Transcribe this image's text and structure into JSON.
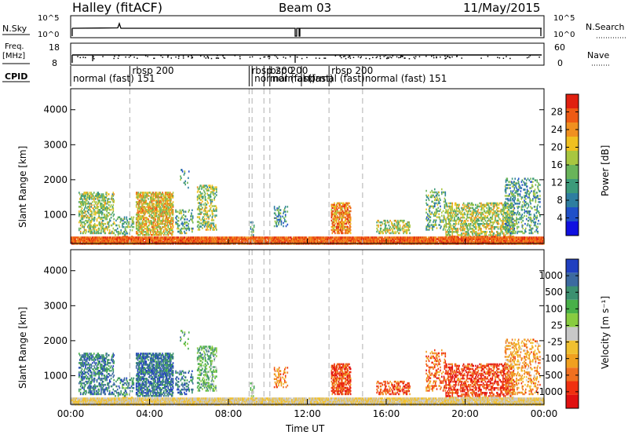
{
  "header": {
    "station": "Halley (fitACF)",
    "beam": "Beam 03",
    "date": "11/May/2015"
  },
  "chart_data": [
    {
      "type": "line",
      "name": "noise-panel",
      "left_label": "N.Sky",
      "right_label": "N.Search",
      "left_ticks": [
        "10^5",
        "10^0"
      ],
      "right_ticks": [
        "10^5",
        "10^0"
      ]
    },
    {
      "type": "line",
      "name": "frequency-panel",
      "left_label": "Freq.",
      "left_unit": "[MHz]",
      "right_label": "Nave",
      "left_ticks": [
        18,
        8
      ],
      "right_ticks": [
        60,
        0
      ]
    },
    {
      "type": "table",
      "name": "cpid-panel",
      "left_label": "CPID",
      "modes": [
        {
          "label": "normal (fast)",
          "id": "151",
          "start": 0.0
        },
        {
          "label": "rbsp",
          "id": "200",
          "start": 3.0
        },
        {
          "label": "rbsp",
          "id": "200",
          "start": 9.05
        },
        {
          "label": "normal (fast)",
          "id": "",
          "start": 9.2
        },
        {
          "label": "rbsp",
          "id": "200",
          "start": 9.8
        },
        {
          "label": "normal (fast)",
          "id": "",
          "start": 10.1
        },
        {
          "label": "normal (fast)",
          "id": "",
          "start": 11.7
        },
        {
          "label": "rbsp",
          "id": "200",
          "start": 13.1
        },
        {
          "label": "normal (fast)",
          "id": "151",
          "start": 14.8
        }
      ]
    },
    {
      "type": "heatmap",
      "name": "power-panel",
      "ylabel": "Slant Range [km]",
      "yticks": [
        1000,
        2000,
        3000,
        4000
      ],
      "ylim": [
        180,
        4600
      ],
      "xlim": [
        0,
        24
      ],
      "colorbar": {
        "label": "Power [dB]",
        "ticks": [
          "28",
          "24",
          "20",
          "16",
          "12",
          "8",
          "4"
        ],
        "colors": [
          "#1010e0",
          "#2050c8",
          "#2e7ea0",
          "#3c9a7a",
          "#69b45a",
          "#a8c640",
          "#f0c020",
          "#f09020",
          "#ee5a14",
          "#e02010"
        ]
      }
    },
    {
      "type": "heatmap",
      "name": "velocity-panel",
      "ylabel": "Slant Range [km]",
      "yticks": [
        1000,
        2000,
        3000,
        4000
      ],
      "ylim": [
        180,
        4600
      ],
      "xlim": [
        0,
        24
      ],
      "xlabel": "Time UT",
      "xticks": [
        "00:00",
        "04:00",
        "08:00",
        "12:00",
        "16:00",
        "20:00",
        "00:00"
      ],
      "colorbar": {
        "label": "Velocity [m s⁻¹]",
        "ticks": [
          "1000",
          "500",
          "100",
          "25",
          "-25",
          "-100",
          "-500",
          "-1000"
        ],
        "colors": [
          "#2040c0",
          "#3c6aa0",
          "#3c9070",
          "#48b048",
          "#88cc40",
          "#c8c8c8",
          "#f0c030",
          "#f0a020",
          "#f07020",
          "#f03010",
          "#e01010"
        ]
      }
    }
  ]
}
